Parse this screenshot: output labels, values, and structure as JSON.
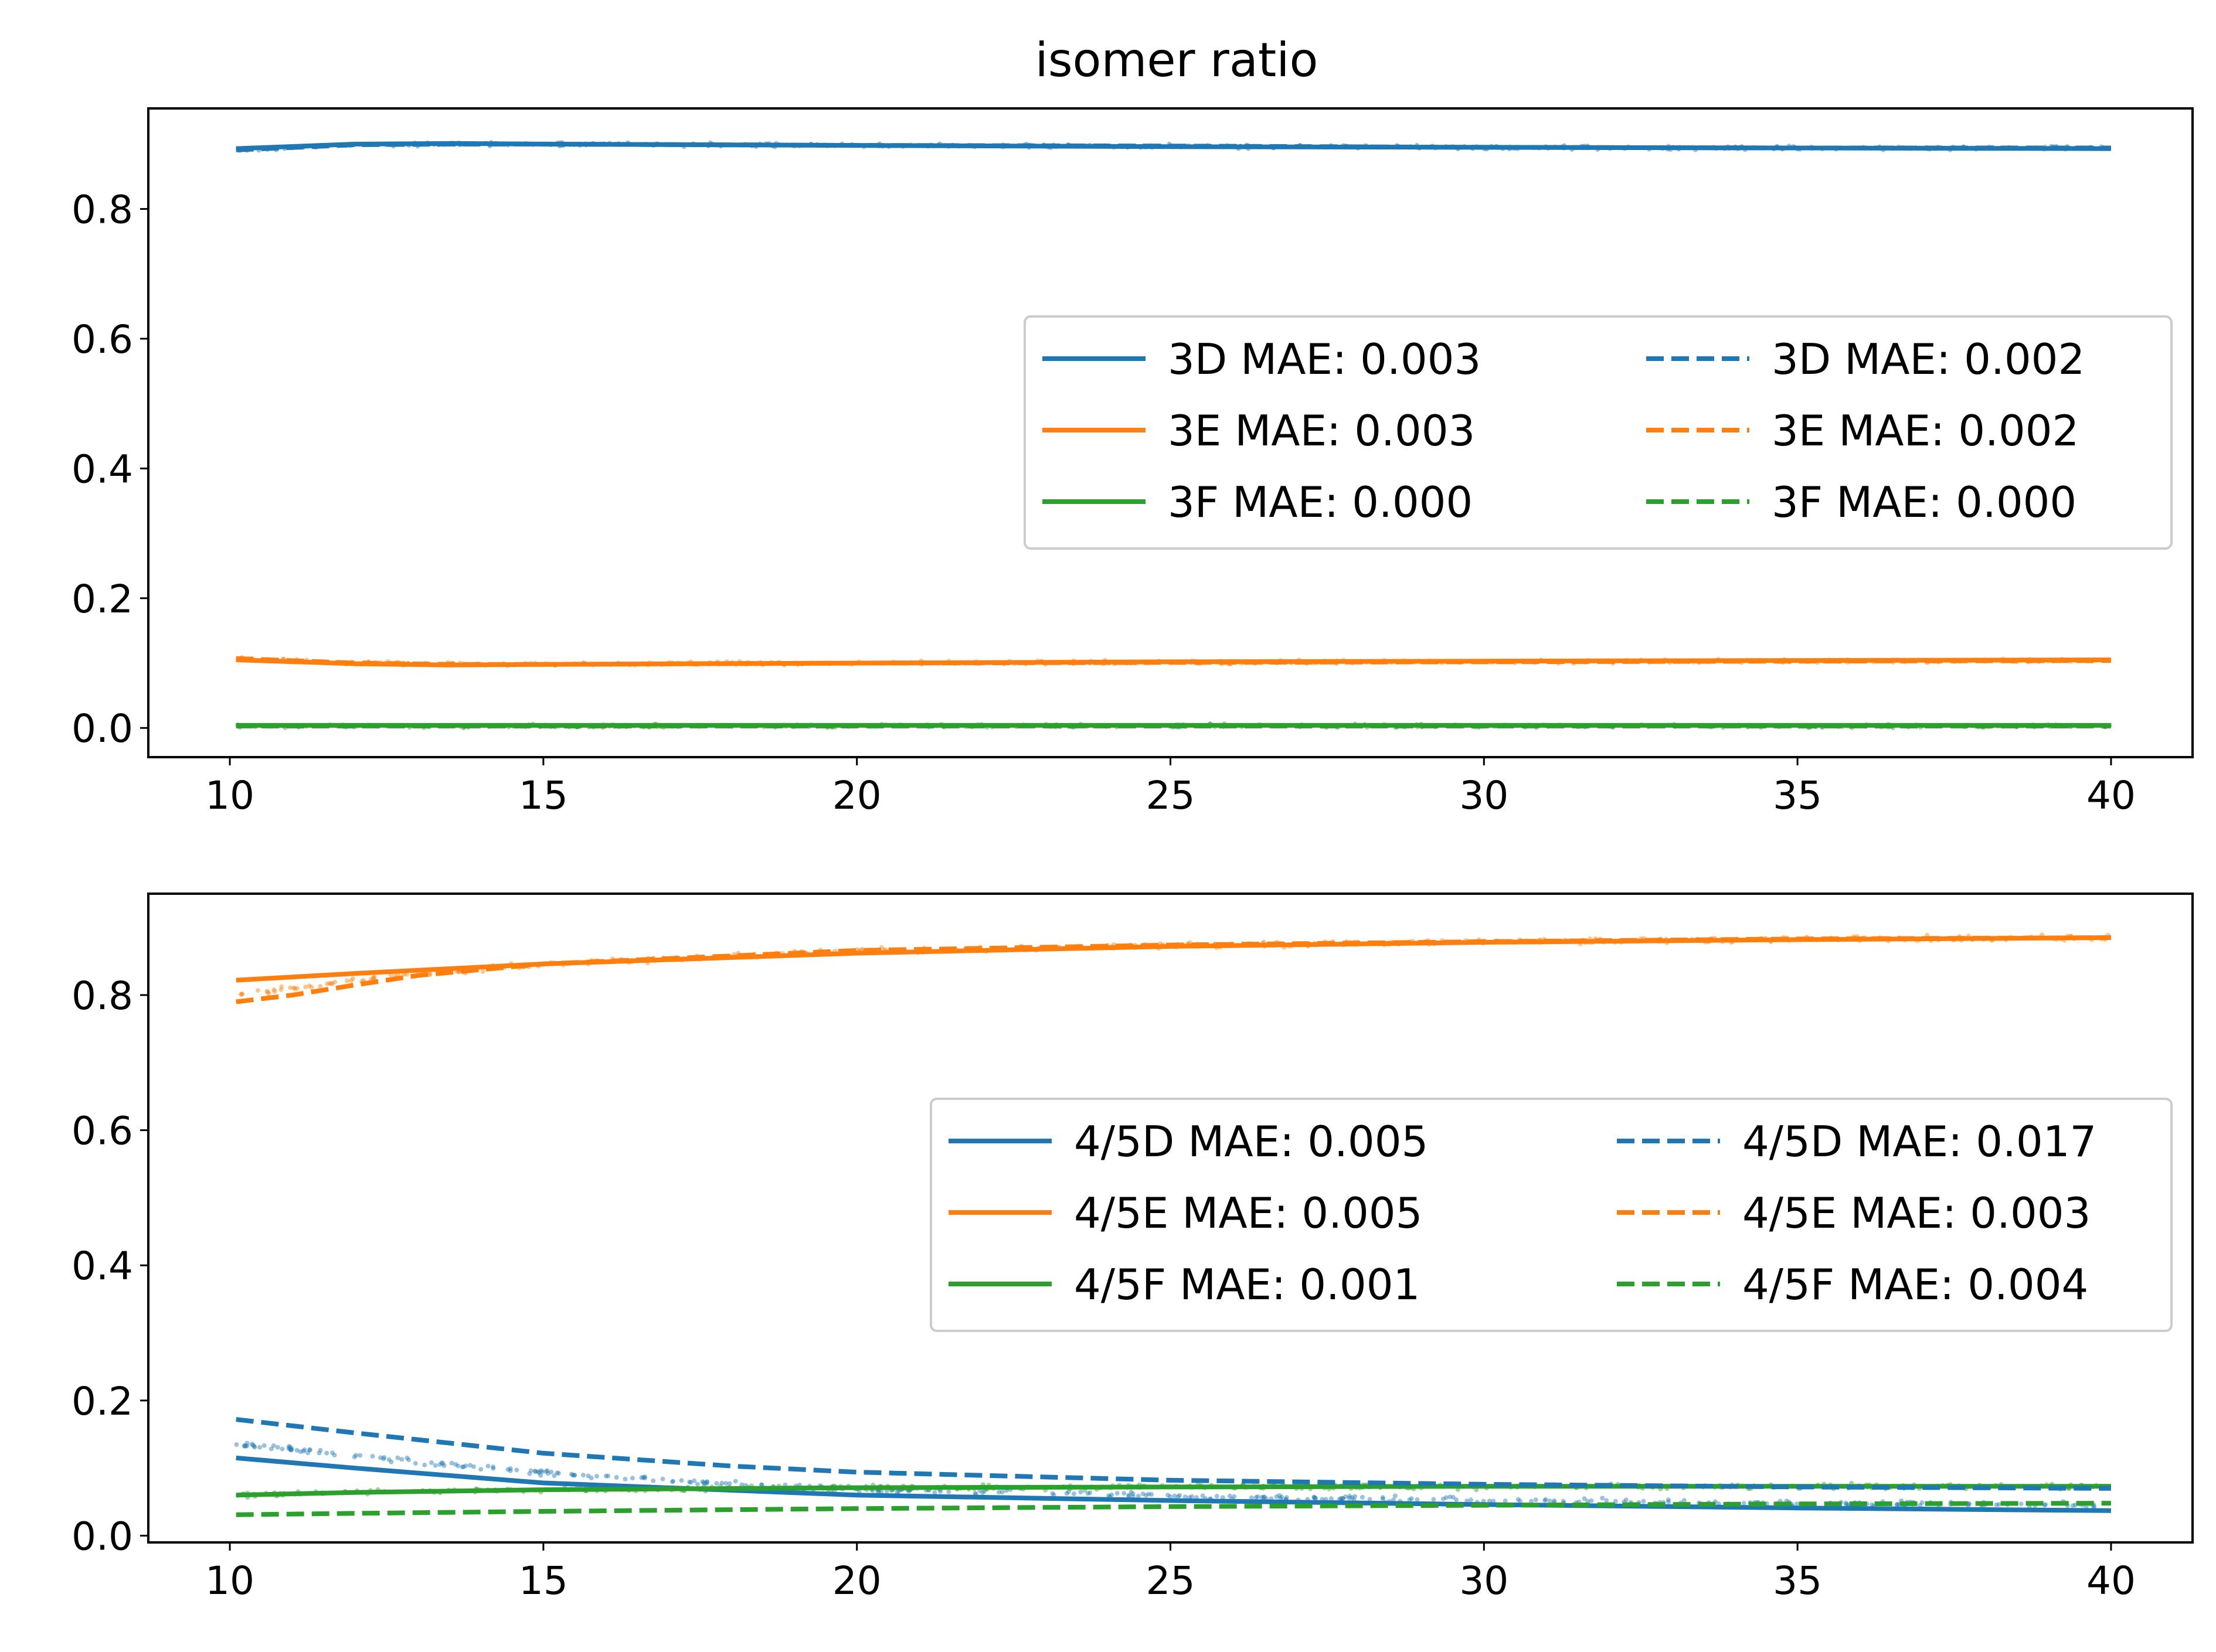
{
  "figure_title": "isomer ratio",
  "colors": {
    "blue": "#1f77b4",
    "orange": "#ff7f0e",
    "green": "#2ca02c"
  },
  "chart_data": [
    {
      "type": "line",
      "title": "",
      "xlabel": "",
      "ylabel": "",
      "xlim": [
        8.7,
        41.3
      ],
      "ylim": [
        -0.045,
        0.955
      ],
      "xticks": [
        "10",
        "15",
        "20",
        "25",
        "30",
        "35",
        "40"
      ],
      "yticks": [
        "0.0",
        "0.2",
        "0.4",
        "0.6",
        "0.8"
      ],
      "grid": false,
      "legend": {
        "placement": "center-right",
        "columns": 2
      },
      "scatter_note_series": [
        "3D",
        "3E",
        "3F"
      ],
      "series": [
        {
          "name": "3D MAE: 0.003",
          "color": "blue",
          "style": "solid",
          "x": [
            10.1,
            12,
            13.5,
            15,
            20,
            25,
            30,
            35,
            40
          ],
          "y": [
            0.893,
            0.9,
            0.901,
            0.9,
            0.898,
            0.896,
            0.895,
            0.894,
            0.893
          ]
        },
        {
          "name": "3E MAE: 0.003",
          "color": "orange",
          "style": "solid",
          "x": [
            10.1,
            12,
            13.5,
            15,
            20,
            25,
            30,
            35,
            40
          ],
          "y": [
            0.105,
            0.099,
            0.097,
            0.098,
            0.1,
            0.102,
            0.103,
            0.104,
            0.105
          ]
        },
        {
          "name": "3F MAE: 0.000",
          "color": "green",
          "style": "solid",
          "x": [
            10.1,
            20,
            30,
            40
          ],
          "y": [
            0.004,
            0.004,
            0.004,
            0.004
          ]
        },
        {
          "name": "3D MAE: 0.002",
          "color": "blue",
          "style": "dashed",
          "x": [
            10.1,
            12,
            13.5,
            15,
            20,
            25,
            30,
            35,
            40
          ],
          "y": [
            0.891,
            0.899,
            0.9,
            0.9,
            0.898,
            0.897,
            0.895,
            0.894,
            0.894
          ]
        },
        {
          "name": "3E MAE: 0.002",
          "color": "orange",
          "style": "dashed",
          "x": [
            10.1,
            12,
            13.5,
            15,
            20,
            25,
            30,
            35,
            40
          ],
          "y": [
            0.107,
            0.1,
            0.098,
            0.098,
            0.1,
            0.101,
            0.102,
            0.103,
            0.104
          ]
        },
        {
          "name": "3F MAE: 0.000",
          "color": "green",
          "style": "dashed",
          "x": [
            10.1,
            20,
            30,
            40
          ],
          "y": [
            0.003,
            0.003,
            0.003,
            0.003
          ]
        }
      ]
    },
    {
      "type": "line",
      "title": "",
      "xlabel": "",
      "ylabel": "",
      "xlim": [
        8.7,
        41.3
      ],
      "ylim": [
        -0.01,
        0.95
      ],
      "xticks": [
        "10",
        "15",
        "20",
        "25",
        "30",
        "35",
        "40"
      ],
      "yticks": [
        "0.0",
        "0.2",
        "0.4",
        "0.6",
        "0.8"
      ],
      "grid": false,
      "legend": {
        "placement": "center-right",
        "columns": 2
      },
      "series": [
        {
          "name": "4/5D MAE: 0.005",
          "color": "blue",
          "style": "solid",
          "x": [
            10.1,
            12,
            15,
            20,
            25,
            30,
            35,
            40
          ],
          "y": [
            0.115,
            0.1,
            0.078,
            0.06,
            0.052,
            0.046,
            0.041,
            0.037
          ]
        },
        {
          "name": "4/5E MAE: 0.005",
          "color": "orange",
          "style": "solid",
          "x": [
            10.1,
            12,
            15,
            20,
            25,
            30,
            35,
            40
          ],
          "y": [
            0.822,
            0.832,
            0.846,
            0.862,
            0.872,
            0.878,
            0.882,
            0.885
          ]
        },
        {
          "name": "4/5F MAE: 0.001",
          "color": "green",
          "style": "solid",
          "x": [
            10.1,
            12,
            15,
            20,
            25,
            30,
            35,
            40
          ],
          "y": [
            0.06,
            0.064,
            0.068,
            0.071,
            0.072,
            0.073,
            0.073,
            0.073
          ]
        },
        {
          "name": "4/5D MAE: 0.017",
          "color": "blue",
          "style": "dashed",
          "x": [
            10.1,
            12,
            15,
            18,
            20,
            25,
            30,
            35,
            40
          ],
          "y": [
            0.172,
            0.152,
            0.122,
            0.103,
            0.094,
            0.082,
            0.076,
            0.072,
            0.07
          ]
        },
        {
          "name": "4/5E MAE: 0.003",
          "color": "orange",
          "style": "dashed",
          "x": [
            10.1,
            11,
            12,
            13,
            15,
            20,
            25,
            30,
            35,
            40
          ],
          "y": [
            0.79,
            0.8,
            0.815,
            0.829,
            0.846,
            0.866,
            0.874,
            0.879,
            0.883,
            0.885
          ]
        },
        {
          "name": "4/5F MAE: 0.004",
          "color": "green",
          "style": "dashed",
          "x": [
            10.1,
            12,
            15,
            20,
            25,
            30,
            35,
            40
          ],
          "y": [
            0.031,
            0.033,
            0.036,
            0.04,
            0.043,
            0.045,
            0.047,
            0.048
          ]
        }
      ]
    }
  ]
}
